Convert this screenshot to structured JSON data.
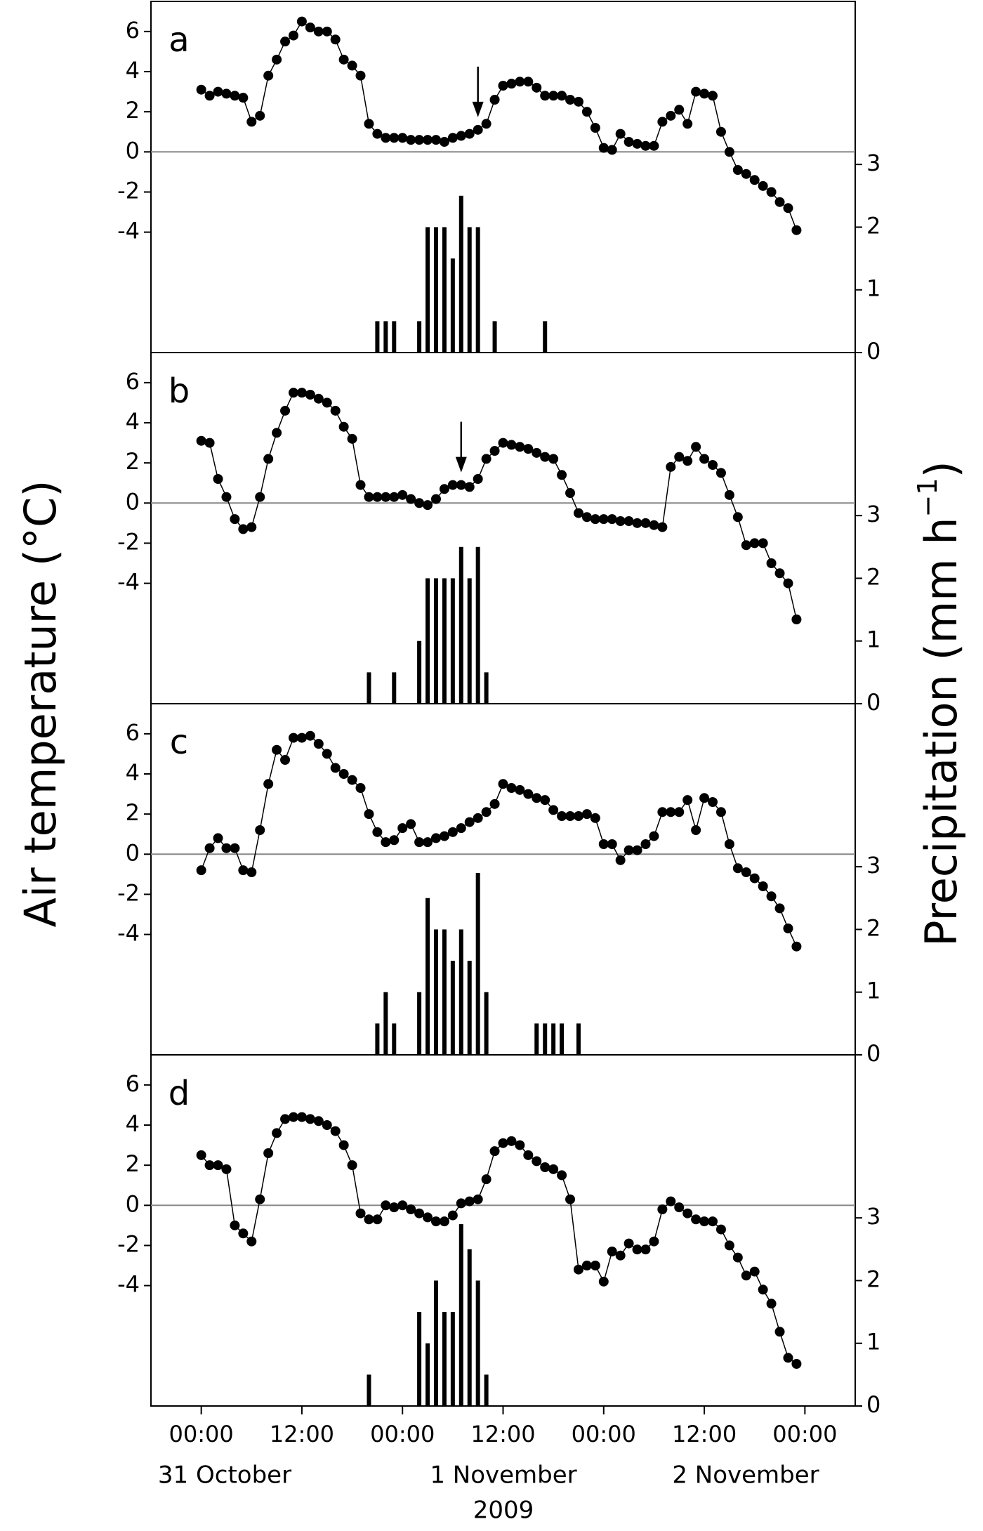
{
  "chart_data": [
    {
      "type": "line_bar",
      "panel_label": "a",
      "ylabel": "Air temperature (°C)",
      "y2label": {
        "text": "Precipitation (mm h",
        "superscript": "−1",
        "close": ")"
      },
      "xlim": [
        -6,
        78
      ],
      "ylim": [
        -10,
        7.5
      ],
      "yticks": [
        -4,
        -2,
        0,
        2,
        4,
        6
      ],
      "y2lim": [
        0,
        5.6
      ],
      "y2ticks": [
        0,
        1,
        2,
        3
      ],
      "zero_line": true,
      "arrow_x": 33,
      "series": [
        {
          "type": "line",
          "color": "#000000",
          "x": [
            0,
            1,
            2,
            3,
            4,
            5,
            6,
            7,
            8,
            9,
            10,
            11,
            12,
            13,
            14,
            15,
            16,
            17,
            18,
            19,
            20,
            21,
            22,
            23,
            24,
            25,
            26,
            27,
            28,
            29,
            30,
            31,
            32,
            33,
            34,
            35,
            36,
            37,
            38,
            39,
            40,
            41,
            42,
            43,
            44,
            45,
            46,
            47,
            48,
            49,
            50,
            51,
            52,
            53,
            54,
            55,
            56,
            57,
            58,
            59,
            60,
            61,
            62,
            63,
            64,
            65,
            66,
            67,
            68,
            69,
            70,
            71
          ],
          "values": [
            3.1,
            2.8,
            3.0,
            2.9,
            2.8,
            2.7,
            1.5,
            1.8,
            3.8,
            4.6,
            5.5,
            5.8,
            6.5,
            6.2,
            6.0,
            6.0,
            5.6,
            4.6,
            4.3,
            3.8,
            1.4,
            0.9,
            0.7,
            0.7,
            0.7,
            0.6,
            0.6,
            0.6,
            0.6,
            0.5,
            0.7,
            0.8,
            0.9,
            1.1,
            1.4,
            2.6,
            3.3,
            3.4,
            3.5,
            3.5,
            3.2,
            2.8,
            2.8,
            2.8,
            2.6,
            2.5,
            2.0,
            1.2,
            0.2,
            0.1,
            0.9,
            0.5,
            0.4,
            0.3,
            0.3,
            1.5,
            1.8,
            2.1,
            1.4,
            3.0,
            2.9,
            2.8,
            1.0,
            0.0,
            -0.9,
            -1.1,
            -1.4,
            -1.7,
            -2.0,
            -2.5,
            -2.8,
            -3.9
          ]
        },
        {
          "type": "bar",
          "axis": "y2",
          "color": "#000000",
          "x": [
            21,
            22,
            23,
            26,
            27,
            28,
            29,
            30,
            31,
            32,
            33,
            35,
            41
          ],
          "values": [
            0.5,
            0.5,
            0.5,
            0.5,
            2,
            2,
            2,
            1.5,
            2.5,
            2,
            2,
            0.5,
            0.5
          ]
        }
      ]
    },
    {
      "type": "line_bar",
      "panel_label": "b",
      "xlim": [
        -6,
        78
      ],
      "ylim": [
        -10,
        7.5
      ],
      "yticks": [
        -4,
        -2,
        0,
        2,
        4,
        6
      ],
      "y2lim": [
        0,
        5.6
      ],
      "y2ticks": [
        0,
        1,
        2,
        3
      ],
      "zero_line": true,
      "arrow_x": 31,
      "series": [
        {
          "type": "line",
          "color": "#000000",
          "x": [
            0,
            1,
            2,
            3,
            4,
            5,
            6,
            7,
            8,
            9,
            10,
            11,
            12,
            13,
            14,
            15,
            16,
            17,
            18,
            19,
            20,
            21,
            22,
            23,
            24,
            25,
            26,
            27,
            28,
            29,
            30,
            31,
            32,
            33,
            34,
            35,
            36,
            37,
            38,
            39,
            40,
            41,
            42,
            43,
            44,
            45,
            46,
            47,
            48,
            49,
            50,
            51,
            52,
            53,
            54,
            55,
            56,
            57,
            58,
            59,
            60,
            61,
            62,
            63,
            64,
            65,
            66,
            67,
            68,
            69,
            70,
            71
          ],
          "values": [
            3.1,
            3.0,
            1.2,
            0.3,
            -0.8,
            -1.3,
            -1.2,
            0.3,
            2.2,
            3.5,
            4.6,
            5.5,
            5.5,
            5.4,
            5.2,
            5.0,
            4.6,
            3.8,
            3.2,
            0.9,
            0.3,
            0.3,
            0.3,
            0.3,
            0.4,
            0.2,
            0.0,
            -0.1,
            0.2,
            0.7,
            0.9,
            0.9,
            0.8,
            1.2,
            2.2,
            2.6,
            3.0,
            2.9,
            2.8,
            2.7,
            2.5,
            2.3,
            2.2,
            1.4,
            0.5,
            -0.5,
            -0.7,
            -0.8,
            -0.8,
            -0.8,
            -0.9,
            -0.9,
            -1.0,
            -1.0,
            -1.1,
            -1.2,
            1.8,
            2.3,
            2.1,
            2.8,
            2.2,
            1.9,
            1.5,
            0.4,
            -0.7,
            -2.1,
            -2.0,
            -2.0,
            -3.0,
            -3.5,
            -4.0,
            -5.8
          ]
        },
        {
          "type": "bar",
          "axis": "y2",
          "color": "#000000",
          "x": [
            20,
            23,
            26,
            27,
            28,
            29,
            30,
            31,
            32,
            33,
            34
          ],
          "values": [
            0.5,
            0.5,
            1,
            2,
            2,
            2,
            2,
            2.5,
            2,
            2.5,
            0.5
          ]
        }
      ]
    },
    {
      "type": "line_bar",
      "panel_label": "c",
      "xlim": [
        -6,
        78
      ],
      "ylim": [
        -10,
        7.5
      ],
      "yticks": [
        -4,
        -2,
        0,
        2,
        4,
        6
      ],
      "y2lim": [
        0,
        5.6
      ],
      "y2ticks": [
        0,
        1,
        2,
        3
      ],
      "zero_line": true,
      "series": [
        {
          "type": "line",
          "color": "#000000",
          "x": [
            0,
            1,
            2,
            3,
            4,
            5,
            6,
            7,
            8,
            9,
            10,
            11,
            12,
            13,
            14,
            15,
            16,
            17,
            18,
            19,
            20,
            21,
            22,
            23,
            24,
            25,
            26,
            27,
            28,
            29,
            30,
            31,
            32,
            33,
            34,
            35,
            36,
            37,
            38,
            39,
            40,
            41,
            42,
            43,
            44,
            45,
            46,
            47,
            48,
            49,
            50,
            51,
            52,
            53,
            54,
            55,
            56,
            57,
            58,
            59,
            60,
            61,
            62,
            63,
            64,
            65,
            66,
            67,
            68,
            69,
            70,
            71
          ],
          "values": [
            -0.8,
            0.3,
            0.8,
            0.3,
            0.3,
            -0.8,
            -0.9,
            1.2,
            3.5,
            5.2,
            4.7,
            5.8,
            5.8,
            5.9,
            5.5,
            5.0,
            4.3,
            4.0,
            3.7,
            3.3,
            2.0,
            1.1,
            0.6,
            0.7,
            1.3,
            1.5,
            0.6,
            0.6,
            0.8,
            0.9,
            1.1,
            1.3,
            1.6,
            1.8,
            2.1,
            2.5,
            3.5,
            3.3,
            3.2,
            3.0,
            2.8,
            2.7,
            2.2,
            1.9,
            1.9,
            1.9,
            2.0,
            1.8,
            0.5,
            0.5,
            -0.3,
            0.2,
            0.2,
            0.5,
            0.9,
            2.1,
            2.1,
            2.1,
            2.7,
            1.2,
            2.8,
            2.6,
            2.1,
            0.5,
            -0.7,
            -0.9,
            -1.2,
            -1.6,
            -2.1,
            -2.7,
            -3.7,
            -4.6
          ]
        },
        {
          "type": "bar",
          "axis": "y2",
          "color": "#000000",
          "x": [
            21,
            22,
            23,
            26,
            27,
            28,
            29,
            30,
            31,
            32,
            33,
            34,
            40,
            41,
            42,
            43,
            45
          ],
          "values": [
            0.5,
            1,
            0.5,
            1,
            2.5,
            2,
            2,
            1.5,
            2,
            1.5,
            2.9,
            1,
            0.5,
            0.5,
            0.5,
            0.5,
            0.5
          ]
        }
      ]
    },
    {
      "type": "line_bar",
      "panel_label": "d",
      "xlim": [
        -6,
        78
      ],
      "ylim": [
        -10,
        7.5
      ],
      "yticks": [
        -4,
        -2,
        0,
        2,
        4,
        6
      ],
      "y2lim": [
        0,
        5.6
      ],
      "y2ticks": [
        0,
        1,
        2,
        3
      ],
      "zero_line": true,
      "xticks": [
        {
          "value": 0,
          "label": "00:00"
        },
        {
          "value": 12,
          "label": "12:00"
        },
        {
          "value": 24,
          "label": "00:00"
        },
        {
          "value": 36,
          "label": "12:00"
        },
        {
          "value": 48,
          "label": "00:00"
        },
        {
          "value": 60,
          "label": "12:00"
        },
        {
          "value": 72,
          "label": "00:00"
        }
      ],
      "date_labels": [
        "31 October",
        "1 November",
        "2 November"
      ],
      "xlabel": "2009",
      "series": [
        {
          "type": "line",
          "color": "#000000",
          "x": [
            0,
            1,
            2,
            3,
            4,
            5,
            6,
            7,
            8,
            9,
            10,
            11,
            12,
            13,
            14,
            15,
            16,
            17,
            18,
            19,
            20,
            21,
            22,
            23,
            24,
            25,
            26,
            27,
            28,
            29,
            30,
            31,
            32,
            33,
            34,
            35,
            36,
            37,
            38,
            39,
            40,
            41,
            42,
            43,
            44,
            45,
            46,
            47,
            48,
            49,
            50,
            51,
            52,
            53,
            54,
            55,
            56,
            57,
            58,
            59,
            60,
            61,
            62,
            63,
            64,
            65,
            66,
            67,
            68,
            69,
            70,
            71
          ],
          "values": [
            2.5,
            2.0,
            2.0,
            1.8,
            -1.0,
            -1.4,
            -1.8,
            0.3,
            2.6,
            3.6,
            4.3,
            4.4,
            4.4,
            4.3,
            4.2,
            4.0,
            3.7,
            3.0,
            2.0,
            -0.4,
            -0.7,
            -0.7,
            0.0,
            -0.1,
            0.0,
            -0.2,
            -0.4,
            -0.6,
            -0.8,
            -0.8,
            -0.5,
            0.1,
            0.2,
            0.3,
            1.3,
            2.7,
            3.1,
            3.2,
            3.0,
            2.5,
            2.2,
            1.9,
            1.8,
            1.5,
            0.3,
            -3.2,
            -3.0,
            -3.0,
            -3.8,
            -2.3,
            -2.5,
            -1.9,
            -2.2,
            -2.2,
            -1.8,
            -0.2,
            0.2,
            -0.1,
            -0.4,
            -0.7,
            -0.8,
            -0.8,
            -1.2,
            -2.0,
            -2.6,
            -3.5,
            -3.3,
            -4.2,
            -4.9,
            -6.3,
            -7.6,
            -7.9
          ]
        },
        {
          "type": "bar",
          "axis": "y2",
          "color": "#000000",
          "x": [
            20,
            26,
            27,
            28,
            29,
            30,
            31,
            32,
            33,
            34
          ],
          "values": [
            0.5,
            1.5,
            1,
            2,
            1.5,
            1.5,
            2.9,
            2.5,
            2,
            0.5
          ]
        }
      ]
    }
  ]
}
